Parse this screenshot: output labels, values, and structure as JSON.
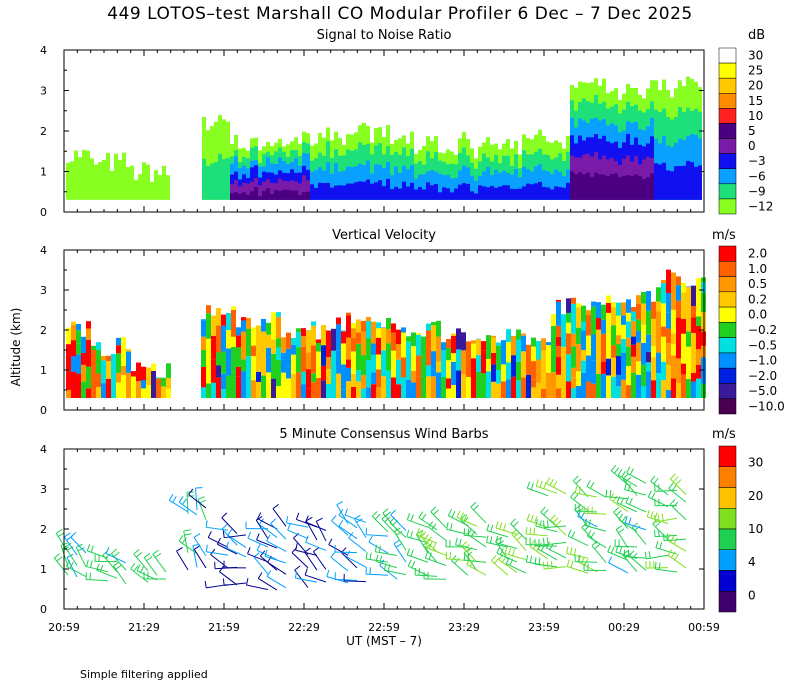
{
  "header": {
    "title": "449 LOTOS–test Marshall CO Modular Profiler  6 Dec –  7 Dec 2025"
  },
  "footer": {
    "note": "Simple filtering applied"
  },
  "axes": {
    "xlabel": "UT  (MST – 7)",
    "ylabel": "Altitude (km)",
    "x_ticks": [
      "20:59",
      "21:29",
      "21:59",
      "22:29",
      "22:59",
      "23:29",
      "23:59",
      "00:29",
      "00:59"
    ],
    "y_ticks": [
      "0",
      "1",
      "2",
      "3",
      "4"
    ]
  },
  "chart_data": [
    {
      "type": "heatmap",
      "title": "Signal to Noise Ratio",
      "colorbar_unit": "dB",
      "colorbar_labels": [
        "30",
        "25",
        "20",
        "15",
        "10",
        "5",
        "0",
        "−3",
        "−6",
        "−9",
        "−12"
      ],
      "colorbar_colors": [
        "#ffffff",
        "#ffff00",
        "#ffc800",
        "#ff8c00",
        "#ff2020",
        "#4a0080",
        "#7a1aa8",
        "#1010f0",
        "#0aa0ff",
        "#1ee07a",
        "#88ff20"
      ],
      "ylim": [
        0,
        4
      ],
      "x_range": [
        "20:59",
        "00:59"
      ],
      "columns": [
        {
          "t": "21:00",
          "top": 1.4,
          "core": "none"
        },
        {
          "t": "21:15",
          "top": 1.2,
          "core": "none"
        },
        {
          "t": "21:30",
          "top": 1.0,
          "core": "none"
        },
        {
          "t": "21:45",
          "top": 0.0,
          "core": "none"
        },
        {
          "t": "21:55",
          "top": 2.2,
          "core": "light"
        },
        {
          "t": "22:05",
          "top": 1.7,
          "core": "deep"
        },
        {
          "t": "22:20",
          "top": 1.8,
          "core": "deep"
        },
        {
          "t": "22:40",
          "top": 1.9,
          "core": "mid"
        },
        {
          "t": "23:00",
          "top": 1.9,
          "core": "mid"
        },
        {
          "t": "23:20",
          "top": 1.7,
          "core": "mid"
        },
        {
          "t": "23:40",
          "top": 1.6,
          "core": "mid"
        },
        {
          "t": "00:00",
          "top": 1.8,
          "core": "mid"
        },
        {
          "t": "00:15",
          "top": 3.1,
          "core": "deep"
        },
        {
          "t": "00:30",
          "top": 3.0,
          "core": "deep"
        },
        {
          "t": "00:50",
          "top": 3.1,
          "core": "mid"
        }
      ]
    },
    {
      "type": "heatmap",
      "title": "Vertical Velocity",
      "colorbar_unit": "m/s",
      "colorbar_labels": [
        "2.0",
        "1.0",
        "0.5",
        "0.2",
        "0.0",
        "−0.2",
        "−0.5",
        "−1.0",
        "−2.0",
        "−5.0",
        "−10.0"
      ],
      "colorbar_colors": [
        "#ff0000",
        "#ff6000",
        "#ff9800",
        "#ffc800",
        "#ffff00",
        "#20d020",
        "#00e0e0",
        "#0090ff",
        "#0020e0",
        "#3a1a9a",
        "#4a0050"
      ],
      "ylim": [
        0,
        4
      ],
      "x_range": [
        "20:59",
        "00:59"
      ],
      "columns": [
        {
          "t": "21:00",
          "top": 2.0
        },
        {
          "t": "21:15",
          "top": 1.6
        },
        {
          "t": "21:30",
          "top": 1.0
        },
        {
          "t": "21:45",
          "top": 0.0
        },
        {
          "t": "21:55",
          "top": 2.5
        },
        {
          "t": "22:10",
          "top": 2.3
        },
        {
          "t": "22:30",
          "top": 2.0
        },
        {
          "t": "22:50",
          "top": 2.2
        },
        {
          "t": "23:10",
          "top": 2.0
        },
        {
          "t": "23:30",
          "top": 1.8
        },
        {
          "t": "23:50",
          "top": 1.8
        },
        {
          "t": "00:10",
          "top": 2.6
        },
        {
          "t": "00:30",
          "top": 2.8
        },
        {
          "t": "00:50",
          "top": 3.3
        }
      ]
    },
    {
      "type": "scatter",
      "title": "5 Minute Consensus Wind Barbs",
      "colorbar_unit": "m/s",
      "colorbar_labels": [
        "30",
        "20",
        "10",
        "4",
        "0"
      ],
      "colorbar_colors": [
        "#ff0000",
        "#ff8000",
        "#ffc000",
        "#80e020",
        "#20d050",
        "#00a0ff",
        "#0000d0",
        "#400070"
      ],
      "ylim": [
        0,
        4
      ],
      "x_range": [
        "20:59",
        "00:59"
      ],
      "barb_color_by_speed": {
        "0-4": "#000090",
        "4-8": "#00a0ff",
        "8-12": "#20d050",
        "12-20": "#80e020",
        "20-30": "#ff8000"
      },
      "barb_columns": [
        {
          "t": "21:05",
          "speed": 8,
          "dir": 315,
          "alts": [
            0.8,
            1.1,
            1.4
          ]
        },
        {
          "t": "21:20",
          "speed": 9,
          "dir": 300,
          "alts": [
            0.7,
            0.9,
            1.2
          ]
        },
        {
          "t": "21:35",
          "speed": 10,
          "dir": 300,
          "alts": [
            0.7,
            0.9
          ]
        },
        {
          "t": "21:50",
          "speed": 6,
          "dir": 330,
          "alts": [
            1.0,
            1.4,
            2.3,
            2.5
          ]
        },
        {
          "t": "22:05",
          "speed": 3,
          "dir": 290,
          "alts": [
            0.6,
            1.0,
            1.3,
            1.6,
            1.9
          ]
        },
        {
          "t": "22:20",
          "speed": 4,
          "dir": 300,
          "alts": [
            0.5,
            0.9,
            1.2,
            1.5,
            1.8,
            2.0
          ]
        },
        {
          "t": "22:35",
          "speed": 4,
          "dir": 310,
          "alts": [
            0.6,
            1.0,
            1.4,
            1.7,
            2.0
          ]
        },
        {
          "t": "22:50",
          "speed": 5,
          "dir": 300,
          "alts": [
            0.7,
            1.0,
            1.4,
            1.8,
            2.1
          ]
        },
        {
          "t": "23:05",
          "speed": 9,
          "dir": 300,
          "alts": [
            0.8,
            1.1,
            1.4,
            1.8,
            2.0
          ]
        },
        {
          "t": "23:20",
          "speed": 11,
          "dir": 300,
          "alts": [
            0.8,
            1.1,
            1.4,
            1.7,
            2.0
          ]
        },
        {
          "t": "23:35",
          "speed": 11,
          "dir": 300,
          "alts": [
            0.9,
            1.2,
            1.5,
            1.8,
            2.1
          ]
        },
        {
          "t": "23:50",
          "speed": 11,
          "dir": 300,
          "alts": [
            0.9,
            1.2,
            1.5,
            1.8
          ]
        },
        {
          "t": "00:05",
          "speed": 12,
          "dir": 290,
          "alts": [
            1.0,
            1.3,
            1.6,
            1.9,
            2.1,
            2.9
          ]
        },
        {
          "t": "00:20",
          "speed": 10,
          "dir": 300,
          "alts": [
            0.9,
            1.2,
            1.6,
            2.0,
            2.4,
            2.8
          ]
        },
        {
          "t": "00:35",
          "speed": 10,
          "dir": 300,
          "alts": [
            0.9,
            1.2,
            1.6,
            2.0,
            2.4,
            2.8,
            3.1
          ]
        },
        {
          "t": "00:50",
          "speed": 12,
          "dir": 290,
          "alts": [
            1.0,
            1.4,
            1.8,
            2.2,
            2.6,
            2.9
          ]
        }
      ]
    }
  ]
}
